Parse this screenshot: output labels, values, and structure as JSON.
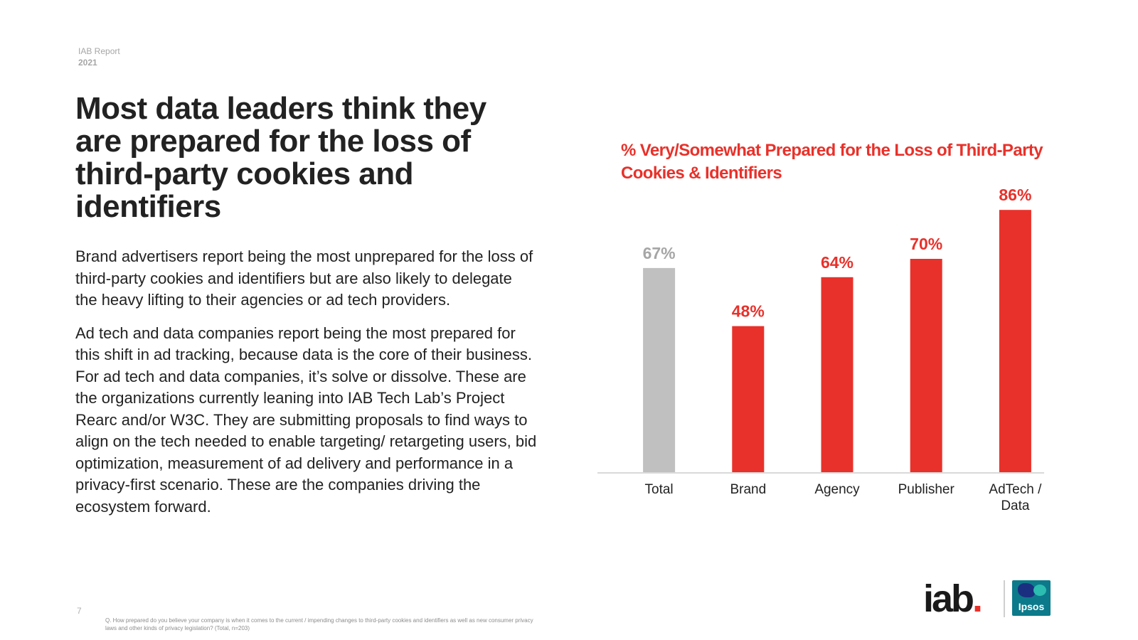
{
  "header": {
    "report_label": "IAB Report",
    "year": "2021"
  },
  "title": "Most data leaders think they are prepared for the loss of third-party cookies and identifiers",
  "paragraphs": [
    "Brand advertisers report being the most unprepared for the loss of third-party cookies and identifiers but are also likely to delegate the heavy lifting to their agencies or ad tech providers.",
    "Ad tech and data companies report being the most prepared for this shift in ad tracking, because data is the core of their business. For ad tech and data companies, it’s solve or dissolve. These are the organizations currently leaning into IAB Tech Lab’s Project Rearc and/or W3C. They are submitting proposals to find ways to align on the tech needed to enable targeting/ retargeting users, bid optimization, measurement of ad delivery and performance in a privacy-first scenario. These are the companies driving the ecosystem forward."
  ],
  "chart_data": {
    "type": "bar",
    "title": "% Very/Somewhat Prepared for the Loss of Third-Party Cookies & Identifiers",
    "categories": [
      "Total",
      "Brand",
      "Agency",
      "Publisher",
      "AdTech / Data"
    ],
    "category_lines": [
      [
        "Total"
      ],
      [
        "Brand"
      ],
      [
        "Agency"
      ],
      [
        "Publisher"
      ],
      [
        "AdTech /",
        "Data"
      ]
    ],
    "values": [
      67,
      48,
      64,
      70,
      86
    ],
    "value_labels": [
      "67%",
      "48%",
      "64%",
      "70%",
      "86%"
    ],
    "bar_colors": [
      "#c0c0c0",
      "#e8312a",
      "#e8312a",
      "#e8312a",
      "#e8312a"
    ],
    "label_colors": [
      "#a6a6a6",
      "#e8312a",
      "#e8312a",
      "#e8312a",
      "#e8312a"
    ],
    "xlabel": "",
    "ylabel": "",
    "ylim": [
      0,
      100
    ],
    "grid": false,
    "legend": "none"
  },
  "footer": {
    "page_number": "7",
    "footnote": "Q. How prepared do you believe your company is when it comes to the current / impending changes to third-party cookies and identifiers as well as new consumer privacy laws and other kinds of privacy legislation? (Total, n=203)"
  },
  "logos": {
    "iab_text": "iab",
    "iab_dot": ".",
    "ipsos_text": "Ipsos"
  },
  "colors": {
    "accent": "#e8312a",
    "total_bar": "#c0c0c0",
    "text": "#222222"
  }
}
